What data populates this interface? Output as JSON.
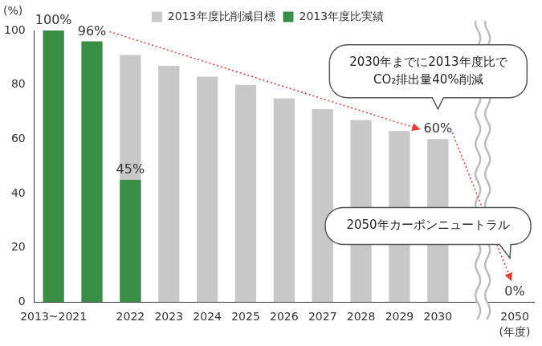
{
  "chart_data": {
    "type": "bar",
    "categories": [
      "2013~2021",
      null,
      "2022",
      "2023",
      "2024",
      "2025",
      "2026",
      "2027",
      "2028",
      "2029",
      "2030",
      null,
      "2050"
    ],
    "series": [
      {
        "name": "2013年度比削減目標",
        "color": "#c8c8c8",
        "values": [
          null,
          null,
          91,
          87,
          83,
          80,
          75,
          71,
          67,
          63,
          60,
          null,
          0
        ],
        "value_labels": [
          null,
          null,
          null,
          null,
          null,
          null,
          null,
          null,
          null,
          null,
          "60%",
          null,
          "0%"
        ]
      },
      {
        "name": "2013年度比実績",
        "color": "#3a8f47",
        "values": [
          100,
          96,
          45,
          null,
          null,
          null,
          null,
          null,
          null,
          null,
          null,
          null,
          null
        ],
        "value_labels": [
          "100%",
          "96%",
          "45%",
          null,
          null,
          null,
          null,
          null,
          null,
          null,
          null,
          null,
          null
        ]
      }
    ],
    "ylim": [
      0,
      100
    ],
    "yticks": [
      0,
      20,
      40,
      60,
      80,
      100
    ],
    "y_label": "(%)",
    "x_label": "(年度)",
    "grid": false,
    "legend": "top",
    "annotations": [
      {
        "text": [
          "2030年までに2013年度比で",
          "CO₂排出量40%削減"
        ]
      },
      {
        "text": [
          "2050年カーボンニュートラル"
        ]
      }
    ]
  }
}
